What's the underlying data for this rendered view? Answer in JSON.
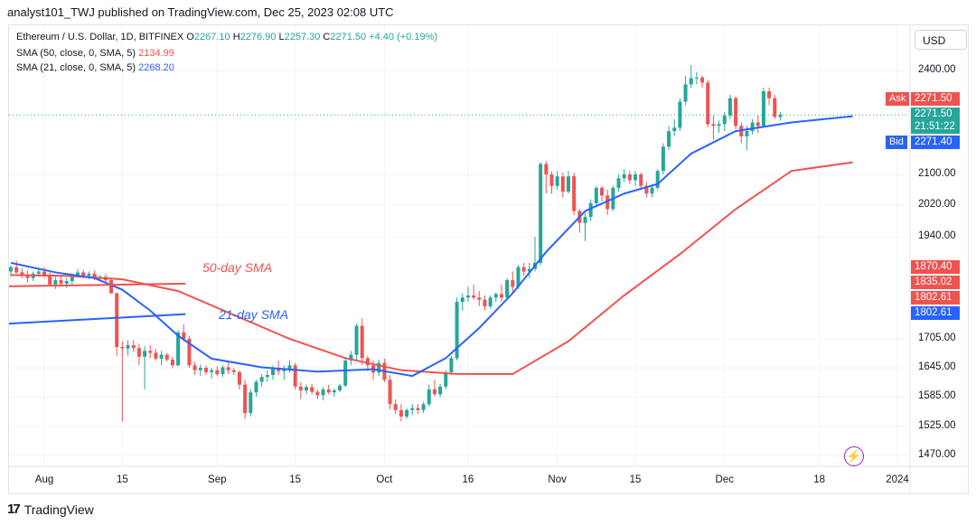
{
  "header": {
    "publish_line": "analyst101_TWJ published on TradingView.com, Dec 25, 2023 02:08 UTC"
  },
  "legend": {
    "symbol": "Ethereum / U.S. Dollar, 1D, BITFINEX",
    "o_label": "O",
    "o": "2267.10",
    "h_label": "H",
    "h": "2276.90",
    "l_label": "L",
    "l": "2257.30",
    "c_label": "C",
    "c": "2271.50",
    "change": "+4.40 (+0.19%)",
    "sma50_label": "SMA (50, close, 0, SMA, 5)",
    "sma50_value": "2134.99",
    "sma21_label": "SMA (21, close, 0, SMA, 5)",
    "sma21_value": "2268.20"
  },
  "currency_button": "USD",
  "price_tags": {
    "ask_label": "Ask",
    "ask": "2271.50",
    "last": "2271.50",
    "countdown": "21:51:22",
    "bid_label": "Bid",
    "bid": "2271.40",
    "tag_1870": "1870.40",
    "tag_1835": "1835.02",
    "tag_1802a": "1802.61",
    "tag_1802b": "1802.61"
  },
  "annotations": {
    "sma50": "50-day SMA",
    "sma21": "21-day SMA"
  },
  "footer": {
    "brand": "TradingView",
    "logo": "17"
  },
  "colors": {
    "up": "#26a69a",
    "down": "#ef5350",
    "sma50": "#ef5350",
    "sma21": "#2962ff",
    "ask": "#ef5350",
    "bid": "#2962ff"
  },
  "chart_data": {
    "type": "candlestick",
    "y_ticks": [
      2400,
      2100,
      2020,
      1940,
      1705,
      1645,
      1585,
      1525,
      1470
    ],
    "y_tick_labels": [
      "2400.00",
      "2100.00",
      "2020.00",
      "1940.00",
      "1705.00",
      "1645.00",
      "1585.00",
      "1525.00",
      "1470.00"
    ],
    "x_tick_labels": [
      "Aug",
      "15",
      "Sep",
      "15",
      "Oct",
      "16",
      "Nov",
      "15",
      "Dec",
      "18",
      "2024"
    ],
    "x_tick_dates": [
      "2023-08-01",
      "2023-08-15",
      "2023-09-01",
      "2023-09-15",
      "2023-10-01",
      "2023-10-16",
      "2023-11-01",
      "2023-11-15",
      "2023-12-01",
      "2023-12-18",
      "2024-01-01"
    ],
    "start_date": "2023-07-26",
    "end_date": "2023-12-25",
    "candles": [
      [
        1860,
        1873,
        1848,
        1870
      ],
      [
        1870,
        1885,
        1855,
        1858
      ],
      [
        1858,
        1868,
        1845,
        1850
      ],
      [
        1850,
        1862,
        1835,
        1845
      ],
      [
        1845,
        1860,
        1838,
        1855
      ],
      [
        1855,
        1866,
        1848,
        1860
      ],
      [
        1860,
        1870,
        1845,
        1850
      ],
      [
        1850,
        1858,
        1825,
        1830
      ],
      [
        1830,
        1848,
        1820,
        1840
      ],
      [
        1840,
        1850,
        1825,
        1832
      ],
      [
        1832,
        1845,
        1822,
        1838
      ],
      [
        1838,
        1856,
        1828,
        1852
      ],
      [
        1852,
        1866,
        1846,
        1858
      ],
      [
        1858,
        1864,
        1845,
        1850
      ],
      [
        1850,
        1860,
        1842,
        1855
      ],
      [
        1855,
        1862,
        1840,
        1845
      ],
      [
        1845,
        1852,
        1838,
        1848
      ],
      [
        1848,
        1855,
        1835,
        1840
      ],
      [
        1840,
        1845,
        1808,
        1810
      ],
      [
        1810,
        1812,
        1670,
        1688
      ],
      [
        1688,
        1700,
        1535,
        1685
      ],
      [
        1685,
        1702,
        1670,
        1692
      ],
      [
        1692,
        1702,
        1678,
        1686
      ],
      [
        1686,
        1695,
        1650,
        1668
      ],
      [
        1668,
        1690,
        1600,
        1680
      ],
      [
        1680,
        1692,
        1665,
        1676
      ],
      [
        1676,
        1684,
        1660,
        1664
      ],
      [
        1664,
        1680,
        1650,
        1672
      ],
      [
        1672,
        1676,
        1658,
        1662
      ],
      [
        1662,
        1668,
        1644,
        1650
      ],
      [
        1650,
        1725,
        1648,
        1720
      ],
      [
        1720,
        1738,
        1700,
        1705
      ],
      [
        1705,
        1712,
        1645,
        1650
      ],
      [
        1650,
        1658,
        1630,
        1640
      ],
      [
        1640,
        1652,
        1628,
        1645
      ],
      [
        1645,
        1650,
        1630,
        1636
      ],
      [
        1636,
        1645,
        1622,
        1640
      ],
      [
        1640,
        1648,
        1628,
        1632
      ],
      [
        1632,
        1650,
        1626,
        1646
      ],
      [
        1646,
        1656,
        1632,
        1640
      ],
      [
        1640,
        1644,
        1630,
        1636
      ],
      [
        1636,
        1640,
        1600,
        1610
      ],
      [
        1610,
        1620,
        1540,
        1552
      ],
      [
        1552,
        1600,
        1545,
        1594
      ],
      [
        1594,
        1620,
        1585,
        1616
      ],
      [
        1616,
        1632,
        1606,
        1626
      ],
      [
        1626,
        1640,
        1616,
        1630
      ],
      [
        1630,
        1650,
        1620,
        1645
      ],
      [
        1645,
        1660,
        1630,
        1638
      ],
      [
        1638,
        1650,
        1620,
        1642
      ],
      [
        1642,
        1660,
        1635,
        1650
      ],
      [
        1650,
        1655,
        1600,
        1606
      ],
      [
        1606,
        1615,
        1580,
        1598
      ],
      [
        1598,
        1610,
        1590,
        1605
      ],
      [
        1605,
        1612,
        1590,
        1595
      ],
      [
        1595,
        1600,
        1580,
        1588
      ],
      [
        1588,
        1605,
        1578,
        1600
      ],
      [
        1600,
        1610,
        1590,
        1594
      ],
      [
        1594,
        1602,
        1585,
        1598
      ],
      [
        1598,
        1612,
        1594,
        1608
      ],
      [
        1608,
        1665,
        1605,
        1660
      ],
      [
        1660,
        1680,
        1650,
        1672
      ],
      [
        1672,
        1740,
        1660,
        1735
      ],
      [
        1735,
        1752,
        1650,
        1665
      ],
      [
        1665,
        1670,
        1638,
        1650
      ],
      [
        1650,
        1660,
        1620,
        1635
      ],
      [
        1635,
        1662,
        1628,
        1655
      ],
      [
        1655,
        1664,
        1615,
        1620
      ],
      [
        1620,
        1630,
        1560,
        1570
      ],
      [
        1570,
        1580,
        1550,
        1558
      ],
      [
        1558,
        1570,
        1535,
        1545
      ],
      [
        1545,
        1562,
        1540,
        1558
      ],
      [
        1558,
        1570,
        1548,
        1562
      ],
      [
        1562,
        1570,
        1550,
        1558
      ],
      [
        1558,
        1575,
        1552,
        1570
      ],
      [
        1570,
        1610,
        1565,
        1600
      ],
      [
        1600,
        1620,
        1585,
        1590
      ],
      [
        1590,
        1612,
        1584,
        1606
      ],
      [
        1606,
        1640,
        1600,
        1636
      ],
      [
        1636,
        1670,
        1630,
        1665
      ],
      [
        1665,
        1800,
        1660,
        1790
      ],
      [
        1790,
        1810,
        1770,
        1800
      ],
      [
        1800,
        1825,
        1790,
        1805
      ],
      [
        1805,
        1830,
        1795,
        1800
      ],
      [
        1800,
        1815,
        1780,
        1795
      ],
      [
        1795,
        1805,
        1770,
        1780
      ],
      [
        1780,
        1805,
        1775,
        1800
      ],
      [
        1800,
        1812,
        1790,
        1808
      ],
      [
        1808,
        1830,
        1790,
        1800
      ],
      [
        1800,
        1845,
        1795,
        1840
      ],
      [
        1840,
        1860,
        1810,
        1825
      ],
      [
        1825,
        1875,
        1820,
        1870
      ],
      [
        1870,
        1880,
        1850,
        1860
      ],
      [
        1860,
        1880,
        1845,
        1866
      ],
      [
        1866,
        1940,
        1860,
        1880
      ],
      [
        1880,
        2135,
        1875,
        2130
      ],
      [
        2130,
        2138,
        2050,
        2100
      ],
      [
        2100,
        2108,
        2050,
        2070
      ],
      [
        2070,
        2110,
        2060,
        2095
      ],
      [
        2095,
        2105,
        2040,
        2055
      ],
      [
        2055,
        2110,
        2050,
        2095
      ],
      [
        2095,
        2105,
        1995,
        2005
      ],
      [
        2005,
        2010,
        1950,
        1975
      ],
      [
        1975,
        2000,
        1930,
        1990
      ],
      [
        1990,
        2035,
        1980,
        2025
      ],
      [
        2025,
        2070,
        2015,
        2065
      ],
      [
        2065,
        2070,
        2030,
        2045
      ],
      [
        2045,
        2060,
        1995,
        2010
      ],
      [
        2010,
        2070,
        2005,
        2065
      ],
      [
        2065,
        2100,
        2055,
        2090
      ],
      [
        2090,
        2115,
        2080,
        2100
      ],
      [
        2100,
        2110,
        2075,
        2085
      ],
      [
        2085,
        2110,
        2070,
        2100
      ],
      [
        2100,
        2105,
        2060,
        2070
      ],
      [
        2070,
        2080,
        2040,
        2050
      ],
      [
        2050,
        2075,
        2040,
        2065
      ],
      [
        2065,
        2115,
        2060,
        2110
      ],
      [
        2110,
        2190,
        2100,
        2180
      ],
      [
        2180,
        2240,
        2170,
        2225
      ],
      [
        2225,
        2260,
        2210,
        2235
      ],
      [
        2235,
        2320,
        2225,
        2310
      ],
      [
        2310,
        2385,
        2300,
        2360
      ],
      [
        2360,
        2415,
        2350,
        2378
      ],
      [
        2378,
        2395,
        2360,
        2380
      ],
      [
        2380,
        2385,
        2350,
        2365
      ],
      [
        2365,
        2372,
        2235,
        2245
      ],
      [
        2245,
        2270,
        2200,
        2240
      ],
      [
        2240,
        2255,
        2220,
        2245
      ],
      [
        2245,
        2280,
        2225,
        2270
      ],
      [
        2270,
        2330,
        2260,
        2320
      ],
      [
        2320,
        2325,
        2230,
        2240
      ],
      [
        2240,
        2250,
        2190,
        2210
      ],
      [
        2210,
        2240,
        2170,
        2225
      ],
      [
        2225,
        2260,
        2215,
        2250
      ],
      [
        2250,
        2270,
        2220,
        2240
      ],
      [
        2240,
        2350,
        2235,
        2340
      ],
      [
        2340,
        2350,
        2300,
        2320
      ],
      [
        2320,
        2330,
        2260,
        2266
      ],
      [
        2266,
        2280,
        2255,
        2272
      ]
    ],
    "sma50": [
      [
        0,
        1852
      ],
      [
        10,
        1850
      ],
      [
        20,
        1842
      ],
      [
        30,
        1815
      ],
      [
        40,
        1760
      ],
      [
        50,
        1705
      ],
      [
        60,
        1665
      ],
      [
        70,
        1640
      ],
      [
        80,
        1632
      ],
      [
        90,
        1632
      ],
      [
        100,
        1700
      ],
      [
        110,
        1805
      ],
      [
        120,
        1900
      ],
      [
        130,
        2010
      ],
      [
        140,
        2110
      ],
      [
        151,
        2135
      ]
    ],
    "sma21": [
      [
        0,
        1880
      ],
      [
        8,
        1858
      ],
      [
        15,
        1845
      ],
      [
        20,
        1818
      ],
      [
        25,
        1770
      ],
      [
        30,
        1712
      ],
      [
        36,
        1664
      ],
      [
        45,
        1646
      ],
      [
        55,
        1637
      ],
      [
        65,
        1642
      ],
      [
        72,
        1628
      ],
      [
        78,
        1665
      ],
      [
        84,
        1730
      ],
      [
        90,
        1810
      ],
      [
        96,
        1905
      ],
      [
        103,
        2005
      ],
      [
        110,
        2050
      ],
      [
        116,
        2075
      ],
      [
        122,
        2160
      ],
      [
        130,
        2225
      ],
      [
        140,
        2250
      ],
      [
        151,
        2268
      ]
    ],
    "trendlines": [
      {
        "name": "50-day SMA line",
        "from": [
          0,
          1826
        ],
        "to": [
          20,
          1832
        ]
      },
      {
        "name": "21-day SMA line",
        "from": [
          0,
          1740
        ],
        "to": [
          20,
          1762
        ]
      }
    ],
    "current_price": 2271.5
  }
}
